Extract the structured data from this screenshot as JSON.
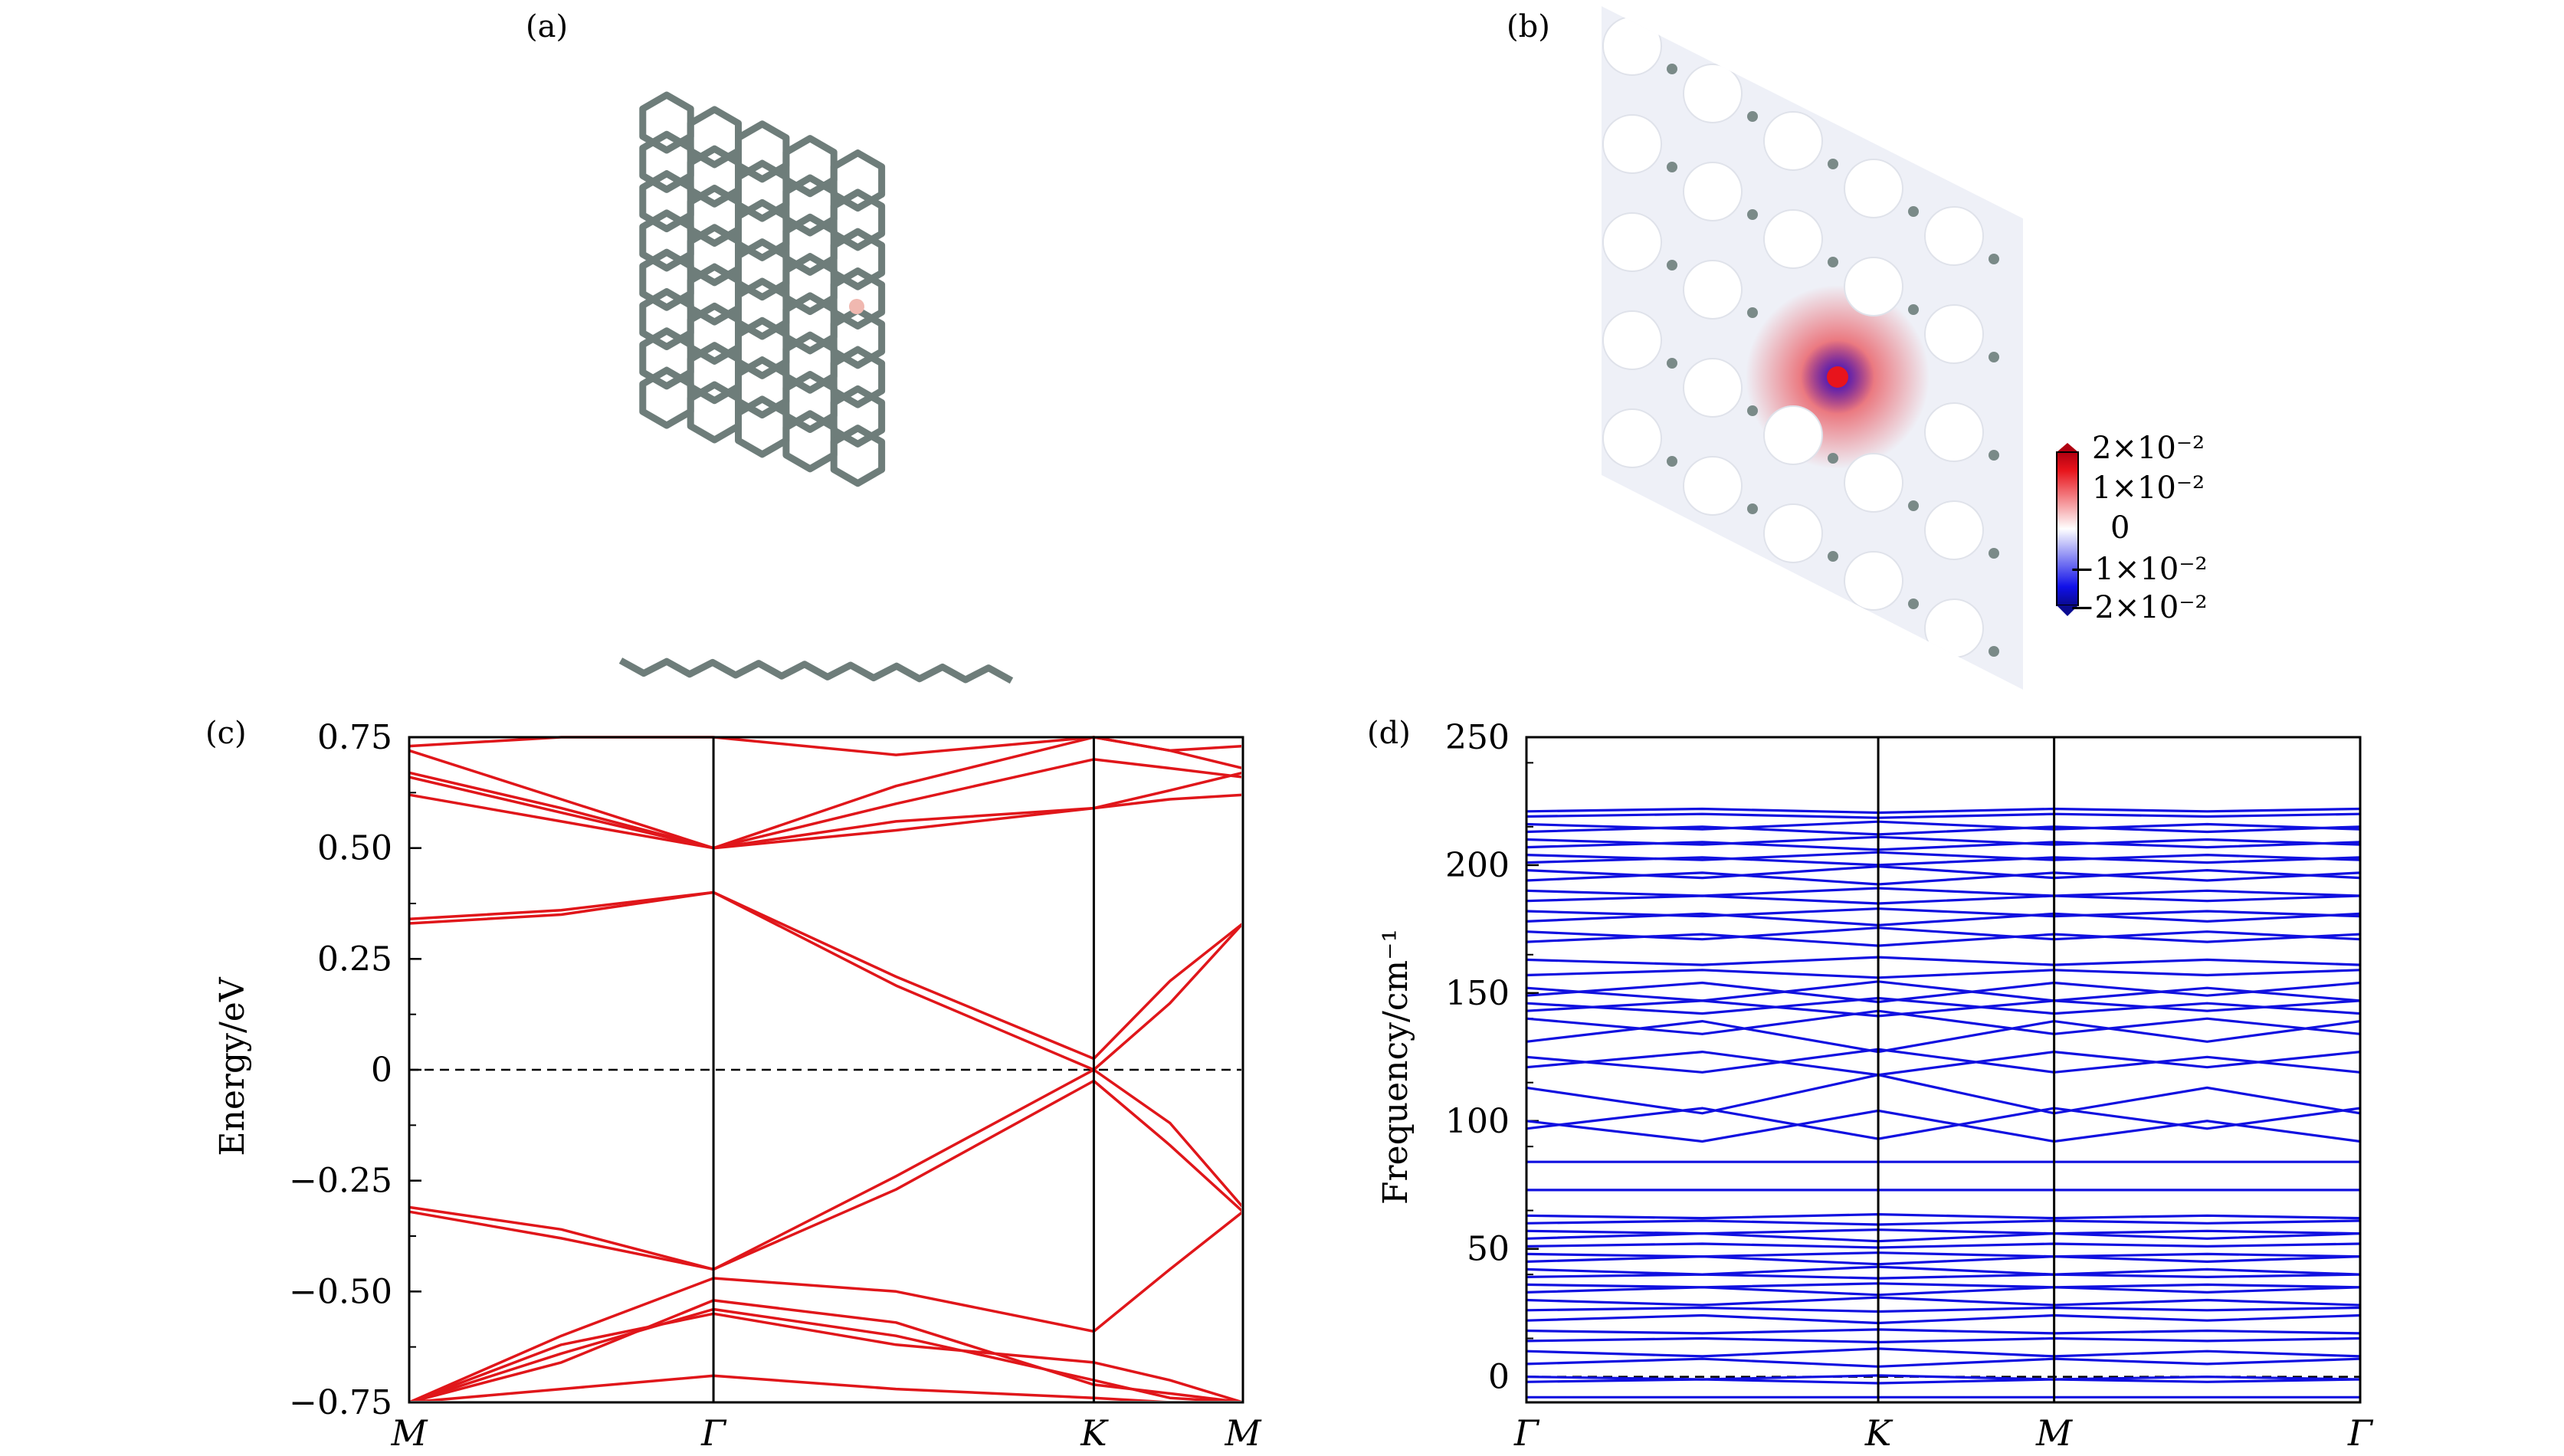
{
  "panels": {
    "a": {
      "label": "(a)"
    },
    "b": {
      "label": "(b)"
    },
    "c": {
      "label": "(c)"
    },
    "d": {
      "label": "(d)"
    }
  },
  "colorbar": {
    "ticks": [
      "2×10⁻²",
      "1×10⁻²",
      "0",
      "−1×10⁻²",
      "−2×10⁻²"
    ],
    "colors": {
      "positive": "#e8141c",
      "zero": "#ffffff",
      "negative": "#1010e8"
    }
  },
  "chart_data": [
    {
      "panel": "c",
      "type": "line",
      "xlabel": "",
      "ylabel": "Energy/eV",
      "ylim": [
        -0.75,
        0.75
      ],
      "ytick_labels": [
        "0.75",
        "0.50",
        "0.25",
        "0",
        "−0.25",
        "−0.50",
        "−0.75"
      ],
      "ytick_values": [
        0.75,
        0.5,
        0.25,
        0,
        -0.25,
        -0.5,
        -0.75
      ],
      "kpoints": [
        "M",
        "Γ",
        "K",
        "M"
      ],
      "kpoint_positions": [
        0,
        1,
        2.25,
        2.74
      ],
      "fermi_level": 0,
      "line_color": "#e0161a",
      "series": [
        {
          "x": [
            0,
            0.5,
            1,
            1.6,
            2.25,
            2.5,
            2.74
          ],
          "y": [
            0.33,
            0.35,
            0.4,
            0.21,
            0.025,
            0.2,
            0.33
          ]
        },
        {
          "x": [
            0,
            0.5,
            1,
            1.6,
            2.25,
            2.5,
            2.74
          ],
          "y": [
            0.34,
            0.36,
            0.4,
            0.19,
            0.0,
            0.15,
            0.33
          ]
        },
        {
          "x": [
            0,
            0.5,
            1,
            1.6,
            2.25,
            2.5,
            2.74
          ],
          "y": [
            -0.31,
            -0.36,
            -0.45,
            -0.24,
            0.0,
            -0.12,
            -0.31
          ]
        },
        {
          "x": [
            0,
            0.5,
            1,
            1.6,
            2.25,
            2.5,
            2.74
          ],
          "y": [
            -0.32,
            -0.38,
            -0.45,
            -0.27,
            -0.025,
            -0.17,
            -0.32
          ]
        },
        {
          "x": [
            0,
            0.5,
            1,
            1.6,
            2.25,
            2.5,
            2.74
          ],
          "y": [
            -0.75,
            -0.6,
            -0.47,
            -0.5,
            -0.59,
            -0.45,
            -0.32
          ]
        },
        {
          "x": [
            0,
            0.5,
            1,
            1.6,
            2.25,
            2.5,
            2.74
          ],
          "y": [
            0.72,
            0.61,
            0.5,
            0.56,
            0.59,
            0.63,
            0.67
          ]
        },
        {
          "x": [
            0,
            0.5,
            1,
            1.6,
            2.25,
            2.5,
            2.74
          ],
          "y": [
            0.66,
            0.58,
            0.5,
            0.54,
            0.59,
            0.61,
            0.62
          ]
        },
        {
          "x": [
            0,
            0.5,
            1,
            1.6,
            2.25,
            2.5,
            2.74
          ],
          "y": [
            0.67,
            0.59,
            0.5,
            0.6,
            0.7,
            0.68,
            0.66
          ]
        },
        {
          "x": [
            0,
            0.5,
            1,
            1.6,
            2.25,
            2.5,
            2.74
          ],
          "y": [
            0.62,
            0.56,
            0.5,
            0.64,
            0.75,
            0.72,
            0.68
          ]
        },
        {
          "x": [
            0,
            0.5,
            1,
            1.6,
            2.25,
            2.5,
            2.74
          ],
          "y": [
            0.73,
            0.75,
            0.75,
            0.71,
            0.75,
            0.72,
            0.73
          ]
        },
        {
          "x": [
            0,
            0.5,
            1,
            1.6,
            2.25,
            2.5,
            2.74
          ],
          "y": [
            -0.75,
            -0.62,
            -0.55,
            -0.62,
            -0.66,
            -0.7,
            -0.75
          ]
        },
        {
          "x": [
            0,
            0.5,
            1,
            1.6,
            2.25,
            2.5,
            2.74
          ],
          "y": [
            -0.75,
            -0.64,
            -0.54,
            -0.6,
            -0.7,
            -0.74,
            -0.75
          ]
        },
        {
          "x": [
            0,
            0.5,
            1,
            1.6,
            2.25,
            2.5,
            2.74
          ],
          "y": [
            -0.75,
            -0.66,
            -0.52,
            -0.57,
            -0.71,
            -0.73,
            -0.75
          ]
        },
        {
          "x": [
            0,
            0.5,
            1,
            1.6,
            2.25,
            2.5,
            2.74
          ],
          "y": [
            -0.75,
            -0.72,
            -0.69,
            -0.72,
            -0.74,
            -0.75,
            -0.75
          ]
        }
      ]
    },
    {
      "panel": "d",
      "type": "line",
      "xlabel": "",
      "ylabel": "Frequency/cm⁻¹",
      "ylim": [
        -10,
        250
      ],
      "ytick_labels": [
        "250",
        "200",
        "150",
        "100",
        "50",
        "0"
      ],
      "ytick_values": [
        250,
        200,
        150,
        100,
        50,
        0
      ],
      "kpoints": [
        "Γ",
        "K",
        "M",
        "Γ"
      ],
      "kpoint_positions": [
        0,
        1,
        1.5,
        2.37
      ],
      "zero_line": 0,
      "line_color": "#1010e0",
      "series_levels": [
        -8,
        -2,
        0,
        5,
        10,
        14,
        18,
        22,
        26,
        30,
        33,
        36,
        39,
        42,
        45,
        48,
        51,
        54,
        57,
        60,
        63,
        73,
        84,
        97,
        100,
        113,
        121,
        125,
        131,
        140,
        143,
        146,
        149,
        152,
        157,
        163,
        170,
        174,
        178,
        182,
        186,
        190,
        194,
        198,
        201,
        204,
        207,
        210,
        213,
        216,
        219,
        221
      ],
      "series_variation": [
        0,
        1,
        -1,
        2,
        -2,
        1,
        -1,
        2,
        1,
        -2,
        2,
        -1,
        1,
        -2,
        2,
        -1,
        1,
        2,
        -1,
        1,
        -1,
        0,
        0,
        8,
        -8,
        -10,
        6,
        -6,
        8,
        -6,
        4,
        -4,
        5,
        -5,
        2,
        -2,
        3,
        -3,
        3,
        -2,
        2,
        -2,
        3,
        -3,
        2,
        -2,
        2,
        -2,
        2,
        -2,
        1,
        1
      ]
    }
  ]
}
